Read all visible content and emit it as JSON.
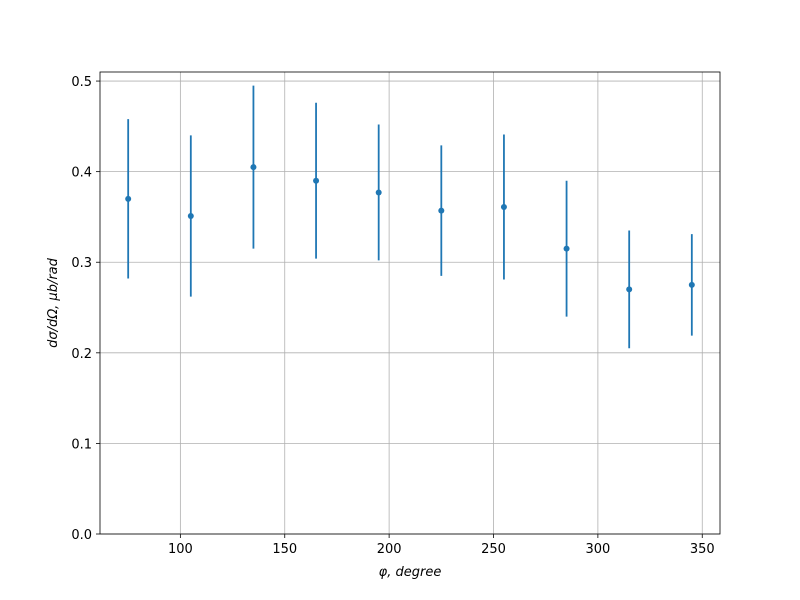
{
  "chart_data": {
    "type": "errorbar",
    "xlabel": "φ, degree",
    "ylabel": "dσ/dΩ, μb/rad",
    "x": [
      75,
      105,
      135,
      165,
      195,
      225,
      255,
      285,
      315,
      345
    ],
    "values": [
      0.37,
      0.351,
      0.405,
      0.39,
      0.377,
      0.357,
      0.361,
      0.315,
      0.27,
      0.275
    ],
    "errors": [
      0.088,
      0.089,
      0.09,
      0.086,
      0.075,
      0.072,
      0.08,
      0.075,
      0.065,
      0.056
    ],
    "color": "#1f77b4",
    "xlim": [
      61.5,
      358.5
    ],
    "ylim": [
      0,
      0.51
    ],
    "xticks": [
      100,
      150,
      200,
      250,
      300,
      350
    ],
    "yticks": [
      {
        "value": 0,
        "label": "0.0"
      },
      {
        "value": 0.1,
        "label": "0.1"
      },
      {
        "value": 0.2,
        "label": "0.2"
      },
      {
        "value": 0.3,
        "label": "0.3"
      },
      {
        "value": 0.4,
        "label": "0.4"
      },
      {
        "value": 0.5,
        "label": "0.5"
      }
    ],
    "grid": true
  }
}
